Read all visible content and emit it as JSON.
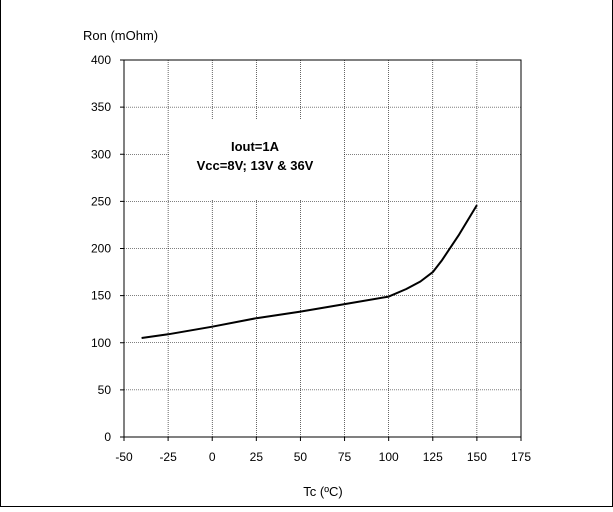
{
  "chart_data": {
    "type": "line",
    "title": "",
    "xlabel": "Tc (ºC)",
    "ylabel": "Ron (mOhm)",
    "xlim": [
      -50,
      175
    ],
    "ylim": [
      0,
      400
    ],
    "x_ticks": [
      -50,
      -25,
      0,
      25,
      50,
      75,
      100,
      125,
      150,
      175
    ],
    "y_ticks": [
      0,
      50,
      100,
      150,
      200,
      250,
      300,
      350,
      400
    ],
    "grid": true,
    "annotation": {
      "line1": "Iout=1A",
      "line2": "Vcc=8V; 13V & 36V"
    },
    "series": [
      {
        "x": [
          -40,
          -25,
          0,
          25,
          50,
          75,
          100,
          110,
          118,
          125,
          130,
          140,
          150
        ],
        "y": [
          105,
          109,
          117,
          126,
          133,
          141,
          149,
          157,
          165,
          175,
          187,
          215,
          246
        ]
      }
    ]
  }
}
